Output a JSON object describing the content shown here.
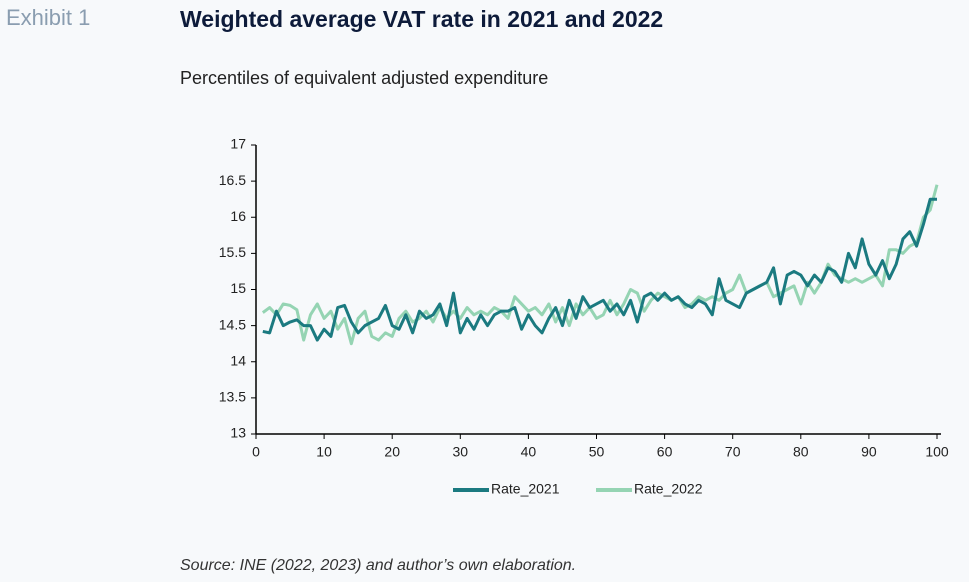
{
  "header": {
    "exhibit": "Exhibit 1",
    "title": "Weighted average VAT rate in 2021 and 2022",
    "subtitle": "Percentiles of equivalent adjusted expenditure"
  },
  "chart_data": {
    "type": "line",
    "x": [
      1,
      2,
      3,
      4,
      5,
      6,
      7,
      8,
      9,
      10,
      11,
      12,
      13,
      14,
      15,
      16,
      17,
      18,
      19,
      20,
      21,
      22,
      23,
      24,
      25,
      26,
      27,
      28,
      29,
      30,
      31,
      32,
      33,
      34,
      35,
      36,
      37,
      38,
      39,
      40,
      41,
      42,
      43,
      44,
      45,
      46,
      47,
      48,
      49,
      50,
      51,
      52,
      53,
      54,
      55,
      56,
      57,
      58,
      59,
      60,
      61,
      62,
      63,
      64,
      65,
      66,
      67,
      68,
      69,
      70,
      71,
      72,
      73,
      74,
      75,
      76,
      77,
      78,
      79,
      80,
      81,
      82,
      83,
      84,
      85,
      86,
      87,
      88,
      89,
      90,
      91,
      92,
      93,
      94,
      95,
      96,
      97,
      98,
      99,
      100
    ],
    "series": [
      {
        "name": "Rate_2021",
        "color": "#1b7a80",
        "values": [
          14.42,
          14.4,
          14.7,
          14.5,
          14.55,
          14.58,
          14.5,
          14.5,
          14.3,
          14.45,
          14.35,
          14.75,
          14.78,
          14.55,
          14.4,
          14.5,
          14.55,
          14.6,
          14.78,
          14.5,
          14.45,
          14.65,
          14.4,
          14.7,
          14.6,
          14.65,
          14.8,
          14.5,
          14.95,
          14.4,
          14.6,
          14.45,
          14.65,
          14.5,
          14.65,
          14.7,
          14.7,
          14.75,
          14.45,
          14.65,
          14.5,
          14.4,
          14.6,
          14.75,
          14.5,
          14.85,
          14.6,
          14.9,
          14.75,
          14.8,
          14.85,
          14.7,
          14.8,
          14.65,
          14.85,
          14.55,
          14.9,
          14.95,
          14.85,
          14.95,
          14.85,
          14.9,
          14.8,
          14.75,
          14.85,
          14.8,
          14.65,
          15.15,
          14.85,
          14.8,
          14.75,
          14.95,
          15.0,
          15.05,
          15.1,
          15.3,
          14.8,
          15.2,
          15.25,
          15.2,
          15.05,
          15.2,
          15.1,
          15.3,
          15.25,
          15.1,
          15.5,
          15.3,
          15.7,
          15.35,
          15.2,
          15.4,
          15.15,
          15.35,
          15.7,
          15.8,
          15.6,
          15.9,
          16.25,
          16.25
        ]
      },
      {
        "name": "Rate_2022",
        "color": "#95d4b3",
        "values": [
          14.68,
          14.75,
          14.65,
          14.8,
          14.78,
          14.72,
          14.3,
          14.65,
          14.8,
          14.6,
          14.7,
          14.45,
          14.6,
          14.25,
          14.6,
          14.7,
          14.35,
          14.3,
          14.4,
          14.35,
          14.6,
          14.7,
          14.55,
          14.6,
          14.7,
          14.55,
          14.75,
          14.6,
          14.7,
          14.6,
          14.75,
          14.65,
          14.7,
          14.65,
          14.75,
          14.7,
          14.6,
          14.9,
          14.8,
          14.7,
          14.75,
          14.65,
          14.8,
          14.55,
          14.75,
          14.5,
          14.8,
          14.65,
          14.75,
          14.6,
          14.65,
          14.85,
          14.65,
          14.8,
          15.0,
          14.95,
          14.7,
          14.85,
          14.95,
          14.9,
          14.85,
          14.9,
          14.75,
          14.8,
          14.9,
          14.85,
          14.9,
          14.85,
          14.95,
          15.0,
          15.2,
          14.95,
          15.0,
          15.05,
          15.1,
          14.9,
          14.95,
          15.0,
          15.05,
          14.8,
          15.1,
          14.95,
          15.1,
          15.35,
          15.2,
          15.15,
          15.1,
          15.15,
          15.1,
          15.15,
          15.2,
          15.05,
          15.55,
          15.55,
          15.5,
          15.6,
          15.65,
          16.0,
          16.1,
          16.45
        ]
      }
    ],
    "xlim": [
      0,
      100
    ],
    "xticks": [
      0,
      10,
      20,
      30,
      40,
      50,
      60,
      70,
      80,
      90,
      100
    ],
    "ylim": [
      13,
      17
    ],
    "yticks": [
      13,
      13.5,
      14,
      14.5,
      15,
      15.5,
      16,
      16.5,
      17
    ],
    "legend": "bottom"
  },
  "footer": {
    "source": "Source: INE (2022, 2023) and author’s own elaboration."
  }
}
